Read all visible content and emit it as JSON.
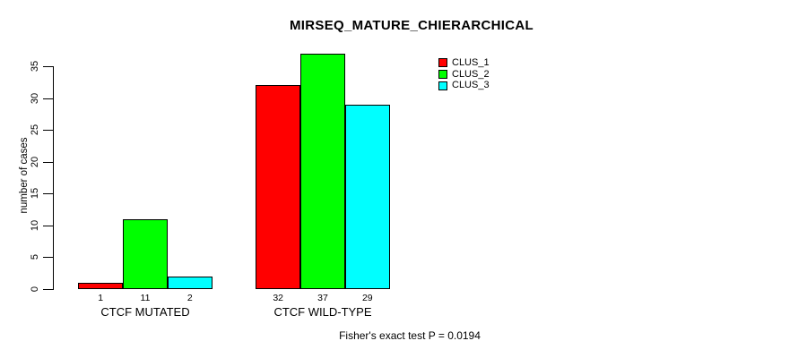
{
  "chart_data": {
    "type": "bar",
    "title": "MIRSEQ_MATURE_CHIERARCHICAL",
    "categories": [
      "CTCF MUTATED",
      "CTCF WILD-TYPE"
    ],
    "series": [
      {
        "name": "CLUS_1",
        "color": "#ff0000",
        "values": [
          1,
          32
        ]
      },
      {
        "name": "CLUS_2",
        "color": "#00ff00",
        "values": [
          11,
          37
        ]
      },
      {
        "name": "CLUS_3",
        "color": "#00ffff",
        "values": [
          2,
          29
        ]
      }
    ],
    "bar_value_labels": [
      [
        1,
        11,
        2
      ],
      [
        32,
        37,
        29
      ]
    ],
    "xlabel": "",
    "ylabel": "number of cases",
    "yticks": [
      0,
      5,
      10,
      15,
      20,
      25,
      30,
      35
    ],
    "ylim": [
      0,
      37
    ],
    "grid": false,
    "legend_position": "top-right",
    "legend_entries": [
      "CLUS_1",
      "CLUS_2",
      "CLUS_3"
    ],
    "annotation": "Fisher's exact test P = 0.0194"
  },
  "colors": {
    "background": "#ffffff",
    "axis": "#000000",
    "text": "#000000",
    "clus_1": "#ff0000",
    "clus_2": "#00ff00",
    "clus_3": "#00ffff"
  }
}
